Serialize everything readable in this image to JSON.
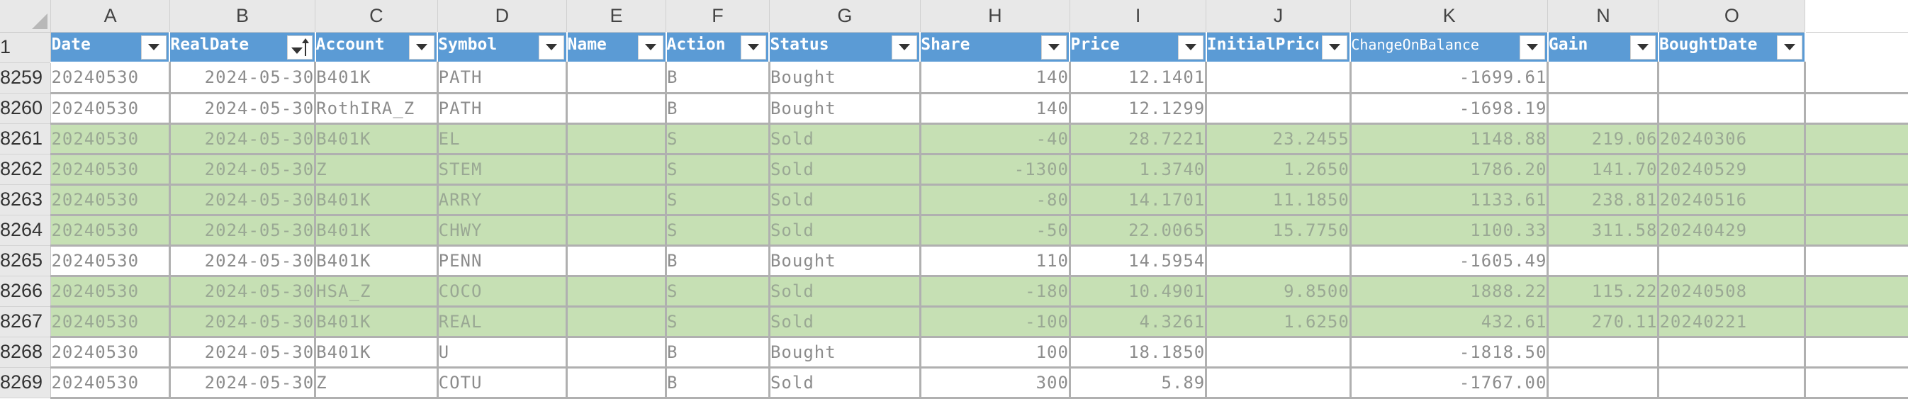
{
  "column_letters": [
    "A",
    "B",
    "C",
    "D",
    "E",
    "F",
    "G",
    "H",
    "I",
    "J",
    "K",
    "N",
    "O"
  ],
  "header_row_number": "1",
  "headers": [
    {
      "label": "Date"
    },
    {
      "label": "RealDate",
      "sorted": true
    },
    {
      "label": "Account"
    },
    {
      "label": "Symbol"
    },
    {
      "label": "Name"
    },
    {
      "label": "Action"
    },
    {
      "label": "Status"
    },
    {
      "label": "Share"
    },
    {
      "label": "Price"
    },
    {
      "label": "InitialPrice"
    },
    {
      "label": "ChangeOnBalance"
    },
    {
      "label": "Gain"
    },
    {
      "label": "BoughtDate"
    }
  ],
  "colors": {
    "header_blue": "#5b9bd5",
    "sold_row_green": "#c6e0b4",
    "sheet_chrome": "#e8e8e8"
  },
  "rows": [
    {
      "row": "8259",
      "highlight": false,
      "cells": [
        "20240530",
        "2024-05-30",
        "B401K",
        "PATH",
        "",
        "B",
        "Bought",
        "140",
        "12.1401",
        "",
        "-1699.61",
        "",
        ""
      ]
    },
    {
      "row": "8260",
      "highlight": false,
      "cells": [
        "20240530",
        "2024-05-30",
        "RothIRA_Z",
        "PATH",
        "",
        "B",
        "Bought",
        "140",
        "12.1299",
        "",
        "-1698.19",
        "",
        ""
      ]
    },
    {
      "row": "8261",
      "highlight": true,
      "cells": [
        "20240530",
        "2024-05-30",
        "B401K",
        "EL",
        "",
        "S",
        "Sold",
        "-40",
        "28.7221",
        "23.2455",
        "1148.88",
        "219.06",
        "20240306"
      ]
    },
    {
      "row": "8262",
      "highlight": true,
      "cells": [
        "20240530",
        "2024-05-30",
        "Z",
        "STEM",
        "",
        "S",
        "Sold",
        "-1300",
        "1.3740",
        "1.2650",
        "1786.20",
        "141.70",
        "20240529"
      ]
    },
    {
      "row": "8263",
      "highlight": true,
      "cells": [
        "20240530",
        "2024-05-30",
        "B401K",
        "ARRY",
        "",
        "S",
        "Sold",
        "-80",
        "14.1701",
        "11.1850",
        "1133.61",
        "238.81",
        "20240516"
      ]
    },
    {
      "row": "8264",
      "highlight": true,
      "cells": [
        "20240530",
        "2024-05-30",
        "B401K",
        "CHWY",
        "",
        "S",
        "Sold",
        "-50",
        "22.0065",
        "15.7750",
        "1100.33",
        "311.58",
        "20240429"
      ]
    },
    {
      "row": "8265",
      "highlight": false,
      "cells": [
        "20240530",
        "2024-05-30",
        "B401K",
        "PENN",
        "",
        "B",
        "Bought",
        "110",
        "14.5954",
        "",
        "-1605.49",
        "",
        ""
      ]
    },
    {
      "row": "8266",
      "highlight": true,
      "cells": [
        "20240530",
        "2024-05-30",
        "HSA_Z",
        "COCO",
        "",
        "S",
        "Sold",
        "-180",
        "10.4901",
        "9.8500",
        "1888.22",
        "115.22",
        "20240508"
      ]
    },
    {
      "row": "8267",
      "highlight": true,
      "cells": [
        "20240530",
        "2024-05-30",
        "B401K",
        "REAL",
        "",
        "S",
        "Sold",
        "-100",
        "4.3261",
        "1.6250",
        "432.61",
        "270.11",
        "20240221"
      ]
    },
    {
      "row": "8268",
      "highlight": false,
      "cells": [
        "20240530",
        "2024-05-30",
        "B401K",
        "U",
        "",
        "B",
        "Bought",
        "100",
        "18.1850",
        "",
        "-1818.50",
        "",
        ""
      ]
    },
    {
      "row": "8269",
      "highlight": false,
      "cells": [
        "20240530",
        "2024-05-30",
        "Z",
        "COTU",
        "",
        "B",
        "Sold",
        "300",
        "5.89",
        "",
        "-1767.00",
        "",
        ""
      ]
    }
  ]
}
